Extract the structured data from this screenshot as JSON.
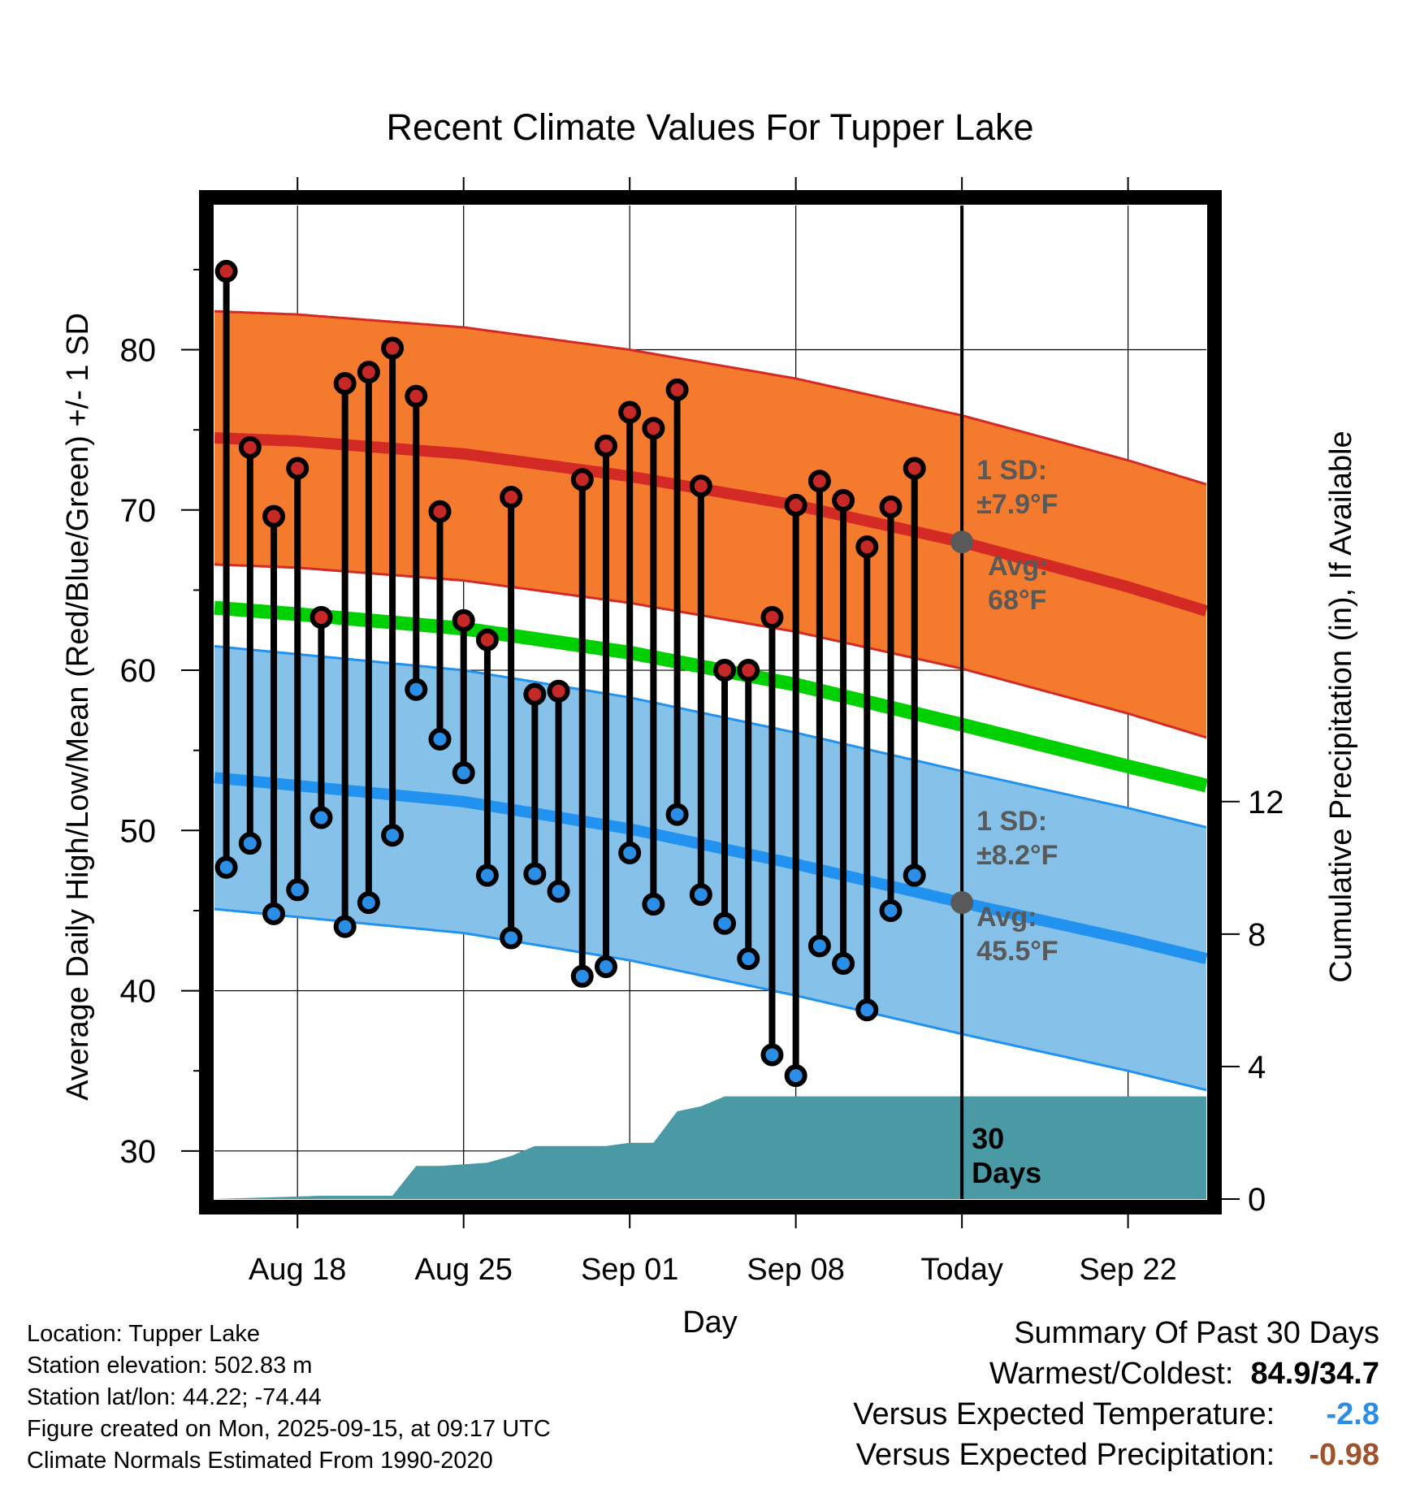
{
  "chart_data": {
    "type": "line",
    "title": "Recent Climate Values For Tupper Lake",
    "xlabel": "Day",
    "ylabel": "Average Daily High/Low/Mean (Red/Blue/Green) +/- 1 SD",
    "y2label": "Cumulative Precipitation (in), If Available",
    "ylim": [
      27,
      89
    ],
    "y2lim": [
      0,
      30
    ],
    "xlim": [
      -0.5,
      41.3
    ],
    "yticks": [
      30,
      40,
      50,
      60,
      70,
      80
    ],
    "y2ticks": [
      0,
      4,
      8,
      12
    ],
    "xticks": [
      {
        "day": 3,
        "label": "Aug 18"
      },
      {
        "day": 10,
        "label": "Aug 25"
      },
      {
        "day": 17,
        "label": "Sep 01"
      },
      {
        "day": 24,
        "label": "Sep 08"
      },
      {
        "day": 31,
        "label": "Today"
      },
      {
        "day": 38,
        "label": "Sep 22"
      }
    ],
    "today_day": 31,
    "days": [
      0,
      1,
      2,
      3,
      4,
      5,
      6,
      7,
      8,
      9,
      10,
      11,
      12,
      13,
      14,
      15,
      16,
      17,
      18,
      19,
      20,
      21,
      22,
      23,
      24,
      25,
      26,
      27,
      28,
      29,
      30
    ],
    "highs": [
      84.9,
      73.9,
      69.6,
      72.6,
      63.3,
      77.9,
      78.6,
      80.1,
      77.1,
      69.9,
      63.1,
      61.9,
      70.8,
      58.5,
      58.7,
      71.9,
      74.0,
      76.1,
      75.1,
      77.5,
      71.5,
      60.0,
      60.0,
      63.3,
      70.3,
      71.8,
      70.6,
      67.7,
      70.2,
      72.6,
      null
    ],
    "lows": [
      47.7,
      49.2,
      44.8,
      46.3,
      50.8,
      44.0,
      45.5,
      49.7,
      58.8,
      55.7,
      53.6,
      47.2,
      43.3,
      47.3,
      46.2,
      40.9,
      41.5,
      48.6,
      45.4,
      51.0,
      46.0,
      44.2,
      42.0,
      36.0,
      34.7,
      42.8,
      41.7,
      38.8,
      45.0,
      47.2,
      null
    ],
    "normals": {
      "days": [
        -0.5,
        3,
        10,
        17,
        24,
        31,
        38,
        41.3
      ],
      "high_mean": [
        74.5,
        74.3,
        73.5,
        72.1,
        70.3,
        68.0,
        65.2,
        63.7
      ],
      "low_mean": [
        53.3,
        52.8,
        51.8,
        50.1,
        47.9,
        45.5,
        43.2,
        42.0
      ],
      "mean": [
        63.9,
        63.5,
        62.6,
        61.1,
        59.1,
        56.6,
        54.0,
        52.8
      ],
      "high_sd": 7.9,
      "low_sd": 8.2
    },
    "precip": {
      "days": [
        -0.5,
        4,
        7,
        8,
        9,
        10,
        11,
        12,
        13,
        14,
        15,
        16,
        17,
        18,
        19,
        20,
        21,
        22,
        23,
        24,
        30,
        31,
        41.3
      ],
      "cumulative": [
        0,
        0.1,
        0.1,
        1.0,
        1.0,
        1.05,
        1.1,
        1.3,
        1.6,
        1.6,
        1.6,
        1.6,
        1.7,
        1.7,
        2.65,
        2.8,
        3.1,
        3.1,
        3.1,
        3.1,
        3.1,
        3.1,
        3.1
      ]
    },
    "annotations": {
      "high_sd_label": "1 SD:",
      "high_sd_value": "±7.9°F",
      "high_avg_label": "Avg:",
      "high_avg_value": "68°F",
      "low_sd_label": "1 SD:",
      "low_sd_value": "±8.2°F",
      "low_avg_label": "Avg:",
      "low_avg_value": "45.5°F",
      "period_number": "30",
      "period_unit": "Days"
    },
    "colors": {
      "high_band": "#f47a2e",
      "high_line": "#d42a26",
      "low_band": "#85c1e8",
      "low_line": "#2192f0",
      "mean_line": "#00d000",
      "precip_fill": "#4a9aa6",
      "high_dot": "#c62828",
      "low_dot": "#2a8ee6",
      "annotation": "#595959"
    }
  },
  "footer": {
    "location": "Location: Tupper Lake",
    "elevation": "Station elevation: 502.83 m",
    "latlon": "Station lat/lon: 44.22; -74.44",
    "created": "Figure created on Mon, 2025-09-15, at 09:17 UTC",
    "normals": "Climate Normals Estimated From 1990-2020"
  },
  "summary": {
    "title": "Summary Of Past 30 Days",
    "warm_cold_label": "Warmest/Coldest:",
    "warm_cold_value": "84.9/34.7",
    "temp_label": "Versus Expected Temperature:",
    "temp_value": "-2.8",
    "precip_label": "Versus Expected Precipitation:",
    "precip_value": "-0.98",
    "temp_color": "#2a8ee6",
    "precip_color": "#a0522d"
  }
}
